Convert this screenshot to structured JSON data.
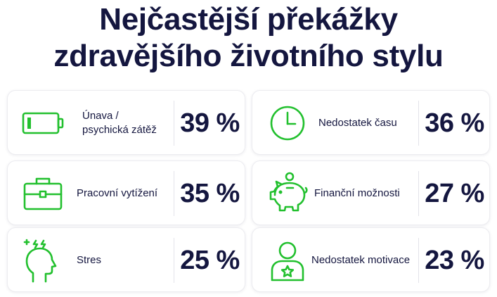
{
  "title": {
    "line1": "Nejčastější překážky",
    "line2": "zdravějšího životního stylu"
  },
  "accent_color": "#22c02e",
  "cards": [
    {
      "icon": "battery-low-icon",
      "label_line1": "Únava /",
      "label_line2": "psychická zátěž",
      "value": "39 %"
    },
    {
      "icon": "clock-icon",
      "label_line1": "Nedostatek času",
      "value": "36 %"
    },
    {
      "icon": "briefcase-icon",
      "label_line1": "Pracovní vytížení",
      "value": "35 %"
    },
    {
      "icon": "piggy-bank-icon",
      "label_line1": "Finanční možnosti",
      "value": "27 %"
    },
    {
      "icon": "stressed-head-icon",
      "label_line1": "Stres",
      "value": "25 %"
    },
    {
      "icon": "person-star-icon",
      "label_line1": "Nedostatek motivace",
      "value": "23 %"
    }
  ]
}
